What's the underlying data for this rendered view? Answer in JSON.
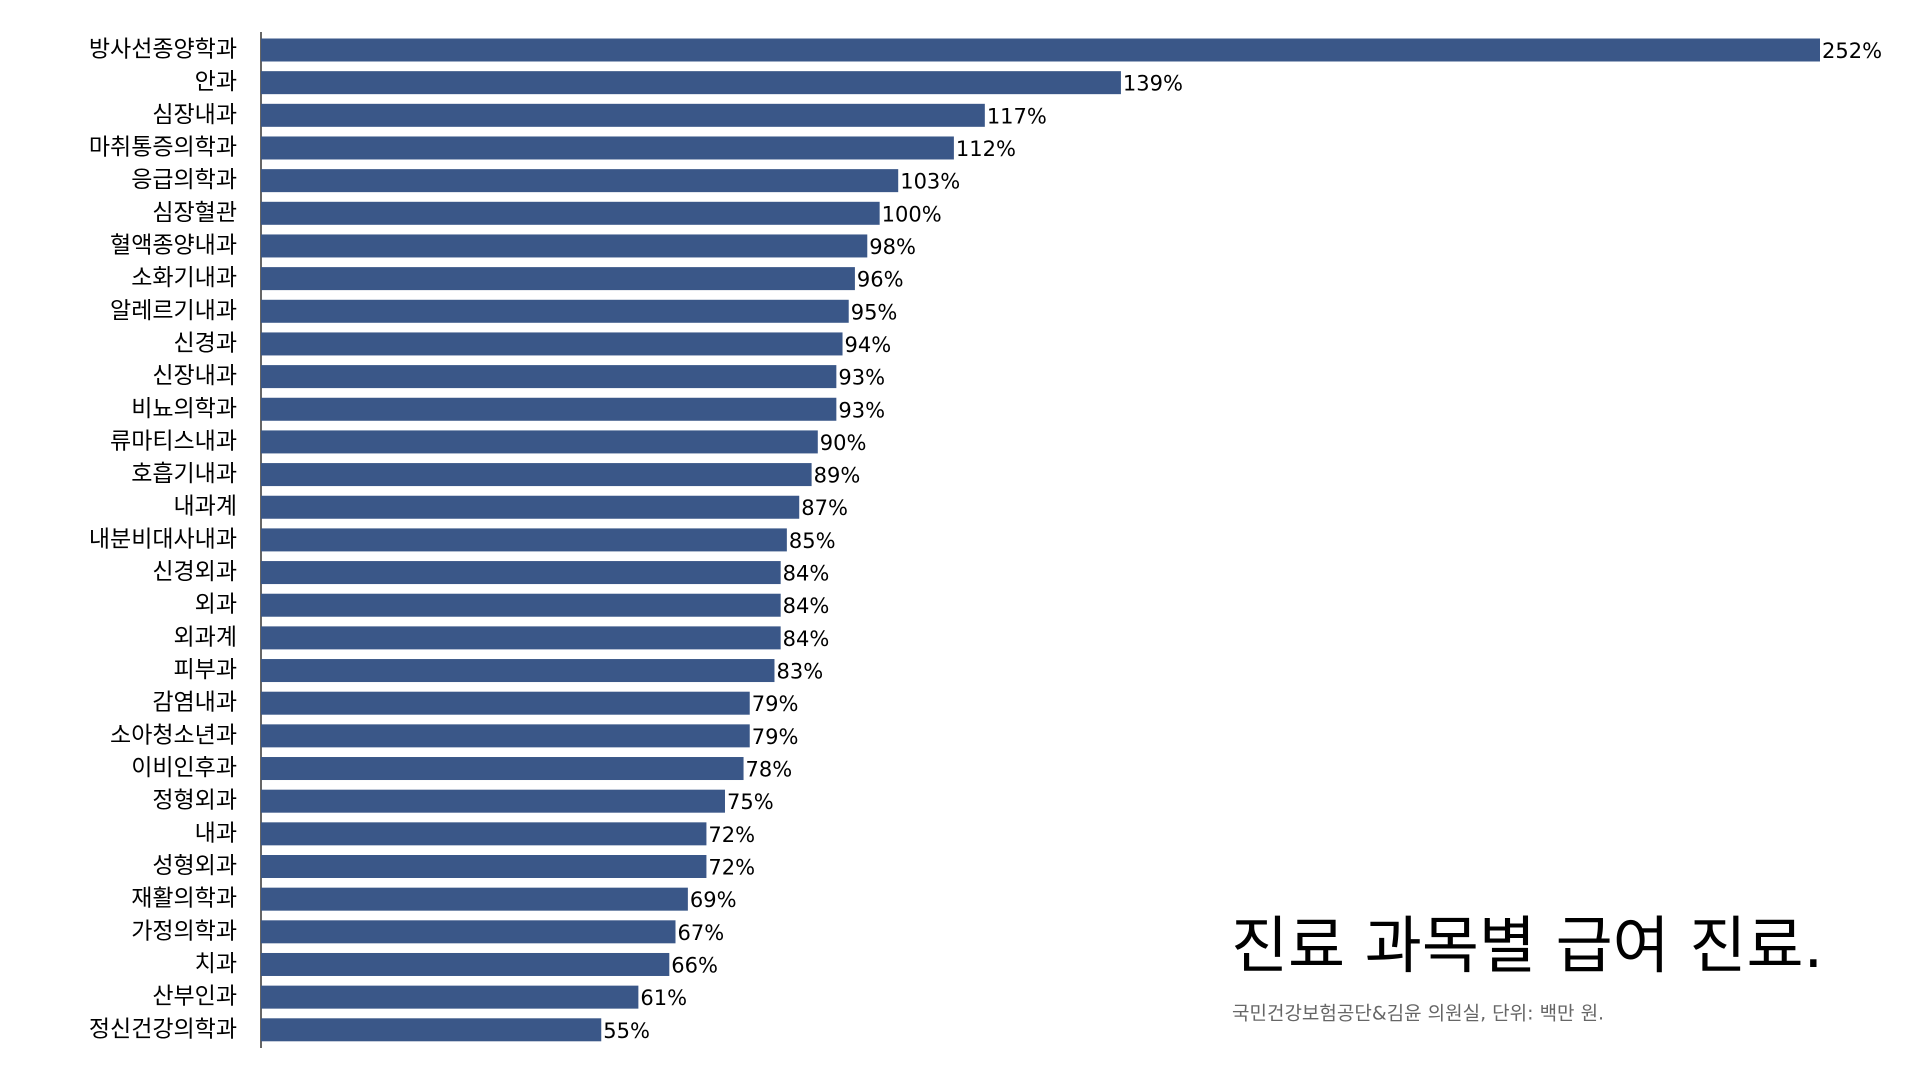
{
  "chart_data": {
    "type": "bar",
    "orientation": "horizontal",
    "title": "진료 과목별 급여 진료.",
    "subtitle": "국민건강보험공단&김윤 의원실, 단위: 백만 원.",
    "color": "#3a5788",
    "categories": [
      "방사선종양학과",
      "안과",
      "심장내과",
      "마취통증의학과",
      "응급의학과",
      "심장혈관",
      "혈액종양내과",
      "소화기내과",
      "알레르기내과",
      "신경과",
      "신장내과",
      "비뇨의학과",
      "류마티스내과",
      "호흡기내과",
      "내과계",
      "내분비대사내과",
      "신경외과",
      "외과",
      "외과계",
      "피부과",
      "감염내과",
      "소아청소년과",
      "이비인후과",
      "정형외과",
      "내과",
      "성형외과",
      "재활의학과",
      "가정의학과",
      "치과",
      "산부인과",
      "정신건강의학과"
    ],
    "values": [
      252,
      139,
      117,
      112,
      103,
      100,
      98,
      96,
      95,
      94,
      93,
      93,
      90,
      89,
      87,
      85,
      84,
      84,
      84,
      83,
      79,
      79,
      78,
      75,
      72,
      72,
      69,
      67,
      66,
      61,
      55
    ],
    "value_labels": [
      "252%",
      "139%",
      "117%",
      "112%",
      "103%",
      "100%",
      "98%",
      "96%",
      "95%",
      "94%",
      "93%",
      "93%",
      "90%",
      "89%",
      "87%",
      "85%",
      "84%",
      "84%",
      "84%",
      "83%",
      "79%",
      "79%",
      "78%",
      "75%",
      "72%",
      "72%",
      "69%",
      "67%",
      "66%",
      "61%",
      "55%"
    ]
  }
}
